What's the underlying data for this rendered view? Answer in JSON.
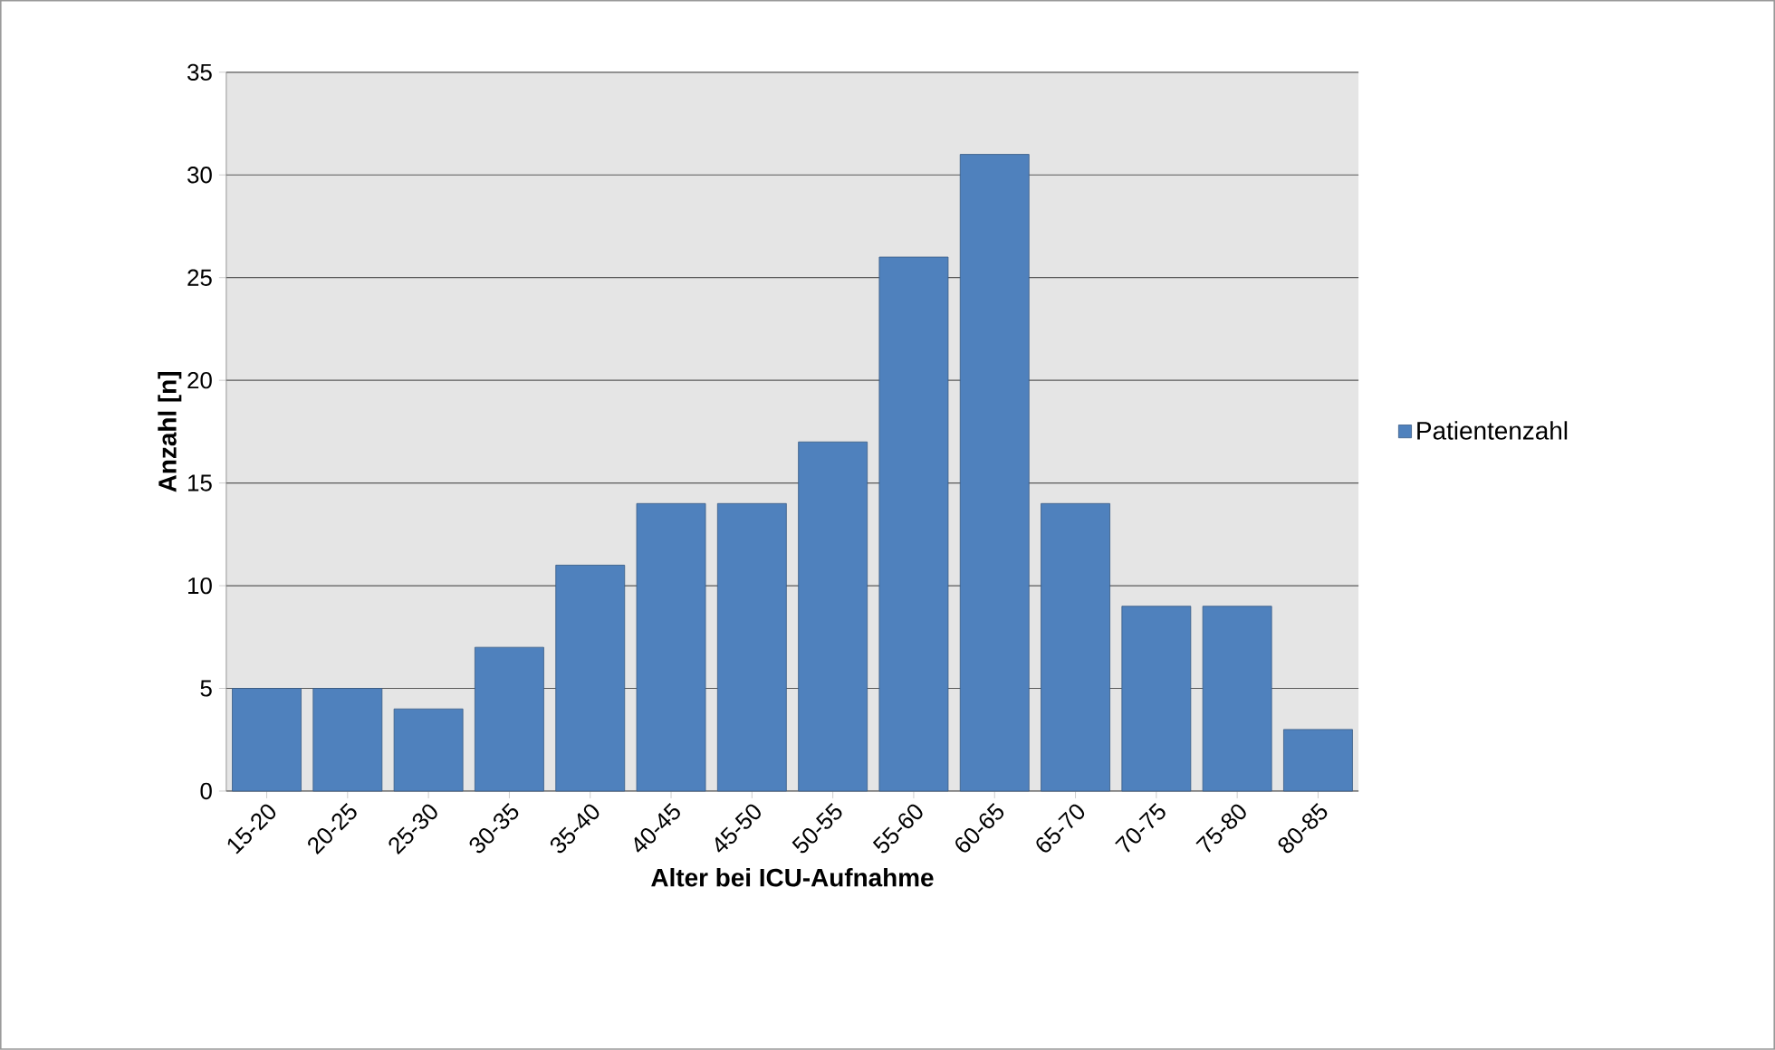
{
  "chart_data": {
    "type": "bar",
    "xlabel": "Alter bei ICU-Aufnahme",
    "ylabel": "Anzahl [n]",
    "categories": [
      "15-20",
      "20-25",
      "25-30",
      "30-35",
      "35-40",
      "40-45",
      "45-50",
      "50-55",
      "55-60",
      "60-65",
      "65-70",
      "70-75",
      "75-80",
      "80-85"
    ],
    "series": [
      {
        "name": "Patientenzahl",
        "color": "#4f81bd",
        "values": [
          5,
          5,
          4,
          7,
          11,
          14,
          14,
          17,
          26,
          31,
          14,
          9,
          9,
          3
        ]
      }
    ],
    "ylim": [
      0,
      35
    ],
    "yticks": [
      0,
      5,
      10,
      15,
      20,
      25,
      30,
      35
    ],
    "grid": "y",
    "legend": "right"
  }
}
